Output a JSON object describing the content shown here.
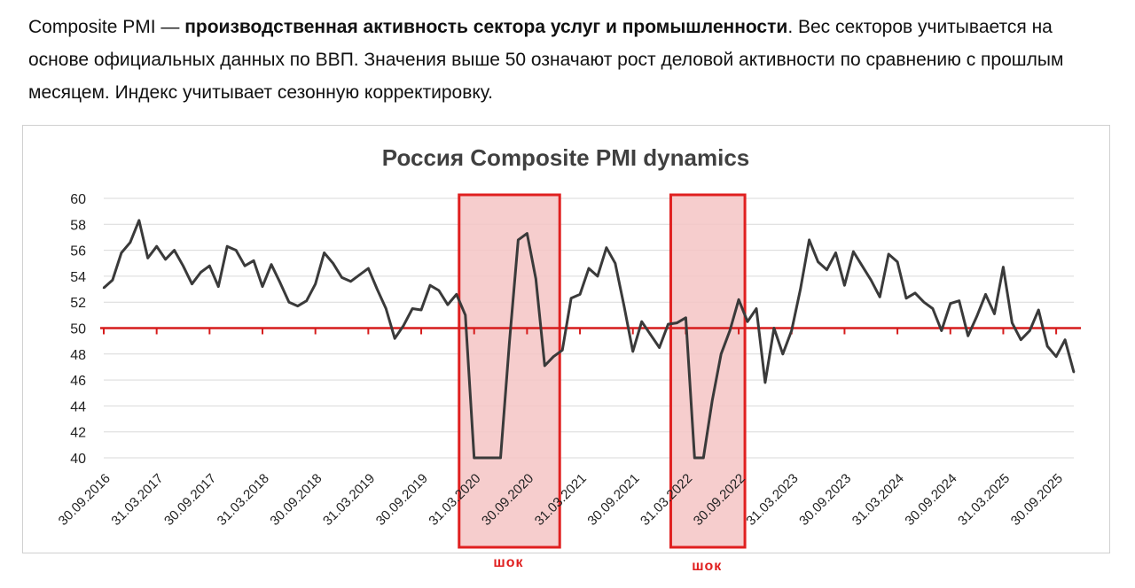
{
  "intro": {
    "part1": "Composite PMI — ",
    "bold": "производственная активность сектора услуг и промышленности",
    "part2": ". Вес секторов учитывается на основе официальных данных по ВВП. Значения выше 50 означают рост деловой активности по сравнению с прошлым месяцем. Индекс учитывает сезонную корректировку."
  },
  "colors": {
    "line": "#3a3a3a",
    "threshold": "#d61c1c",
    "shock_fill": "#f4c4c4",
    "shock_border": "#e02020",
    "grid": "#d9d9d9",
    "title": "#404040"
  },
  "chart_data": {
    "type": "line",
    "title": "Россия Composite PMI dynamics",
    "xlabel": "",
    "ylabel": "",
    "ylim": [
      40,
      60
    ],
    "yticks": [
      40,
      42,
      44,
      46,
      48,
      50,
      52,
      54,
      56,
      58,
      60
    ],
    "grid": true,
    "threshold": 50,
    "x_start": "2016-09",
    "x_end": "2025-10",
    "x_tick_labels": [
      "30.09.2016",
      "31.03.2017",
      "30.09.2017",
      "31.03.2018",
      "30.09.2018",
      "31.03.2019",
      "30.09.2019",
      "31.03.2020",
      "30.09.2020",
      "31.03.2021",
      "30.09.2021",
      "31.03.2022",
      "30.09.2022",
      "31.03.2023",
      "30.09.2023",
      "31.03.2024",
      "30.09.2024",
      "31.03.2025",
      "30.09.2025"
    ],
    "values": [
      53.1,
      53.7,
      55.8,
      56.6,
      58.3,
      55.4,
      56.3,
      55.3,
      56.0,
      54.8,
      53.4,
      54.3,
      54.8,
      53.2,
      56.3,
      56.0,
      54.8,
      55.2,
      53.2,
      54.9,
      53.5,
      52.0,
      51.7,
      52.1,
      53.4,
      55.8,
      55.0,
      53.9,
      53.6,
      54.1,
      54.6,
      53.0,
      51.5,
      49.2,
      50.2,
      51.5,
      51.4,
      53.3,
      52.9,
      51.8,
      52.6,
      51.0,
      40.0,
      40.0,
      40.0,
      40.0,
      48.9,
      56.8,
      57.3,
      53.8,
      47.1,
      47.8,
      48.3,
      52.3,
      52.6,
      54.6,
      54.0,
      56.2,
      55.0,
      51.7,
      48.2,
      50.5,
      49.5,
      48.5,
      50.3,
      50.4,
      50.8,
      40.0,
      40.0,
      44.4,
      48.0,
      49.8,
      52.2,
      50.5,
      51.5,
      45.8,
      50.0,
      48.0,
      49.8,
      53.0,
      56.8,
      55.1,
      54.5,
      55.8,
      53.3,
      55.9,
      54.8,
      53.7,
      52.4,
      55.7,
      55.1,
      52.3,
      52.7,
      52.0,
      51.5,
      49.8,
      51.9,
      52.1,
      49.4,
      50.9,
      52.6,
      51.1,
      54.7,
      50.4,
      49.1,
      49.8,
      51.4,
      48.6,
      47.8,
      49.1,
      46.6
    ],
    "shock_periods": [
      {
        "from": "2020-02",
        "to": "2020-12",
        "label": "шок"
      },
      {
        "from": "2022-02",
        "to": "2022-09",
        "label": "шок"
      }
    ]
  }
}
